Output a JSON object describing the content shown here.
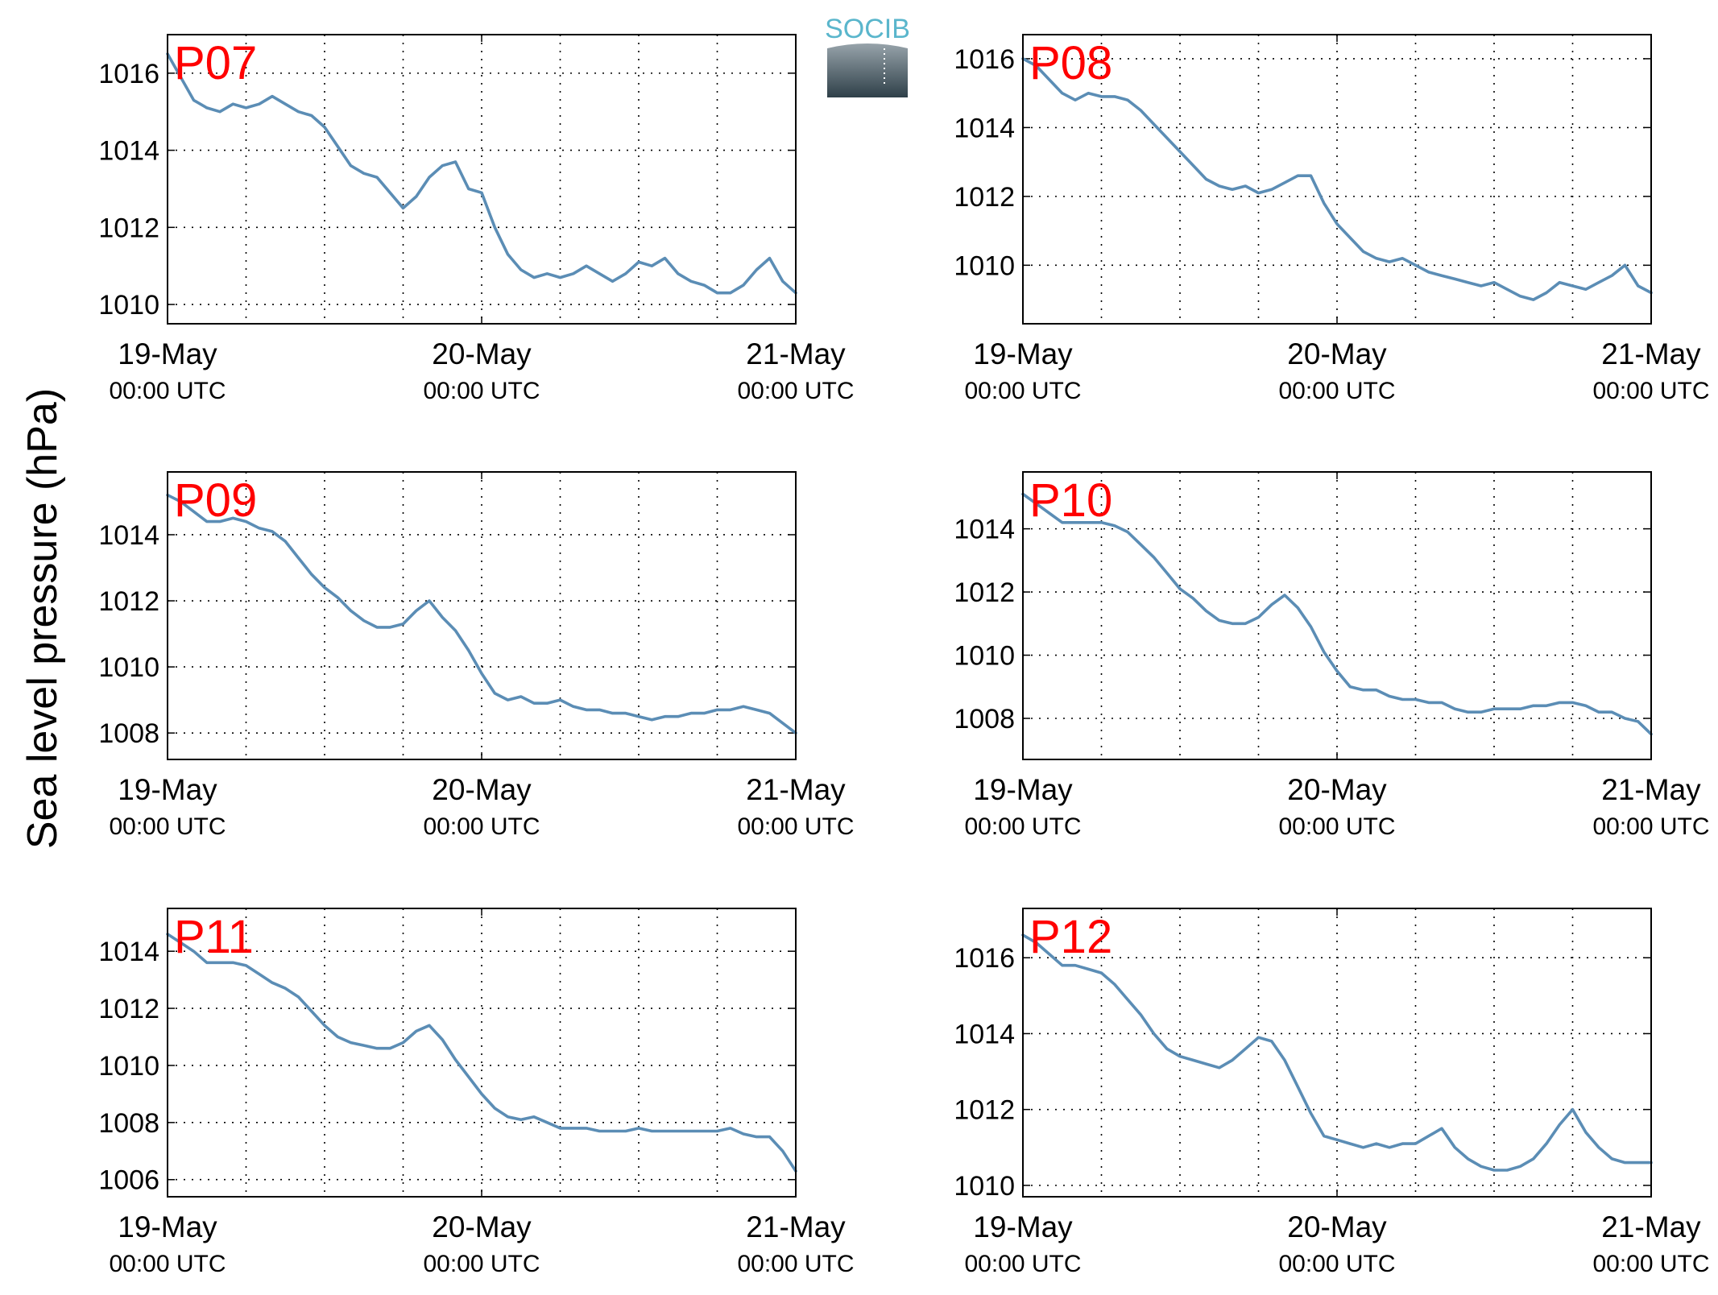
{
  "figure": {
    "ylabel": "Sea level pressure (hPa)",
    "logo_text": "SOCIB",
    "x_ticks": [
      {
        "day": 0,
        "date": "19-May",
        "time": "00:00 UTC"
      },
      {
        "day": 1,
        "date": "20-May",
        "time": "00:00 UTC"
      },
      {
        "day": 2,
        "date": "21-May",
        "time": "00:00 UTC"
      }
    ],
    "x_grid_hours": [
      0,
      6,
      12,
      18,
      24,
      30,
      36,
      42,
      48
    ],
    "series_color": "#5b8db5",
    "label_color": "#ff0000"
  },
  "chart_data": [
    {
      "type": "line",
      "title": "P07",
      "xlabel": "",
      "ylabel": "Sea level pressure (hPa)",
      "xlim": [
        0,
        48
      ],
      "ylim": [
        1009.5,
        1017
      ],
      "yticks": [
        1010,
        1012,
        1014,
        1016
      ],
      "grid": true,
      "x_unit": "hours since 19-May 00:00 UTC",
      "x": [
        0,
        1,
        2,
        3,
        4,
        5,
        6,
        7,
        8,
        9,
        10,
        11,
        12,
        13,
        14,
        15,
        16,
        17,
        18,
        19,
        20,
        21,
        22,
        23,
        24,
        25,
        26,
        27,
        28,
        29,
        30,
        31,
        32,
        33,
        34,
        35,
        36,
        37,
        38,
        39,
        40,
        41,
        42,
        43,
        44,
        45,
        46,
        47,
        48
      ],
      "values": [
        1016.5,
        1015.9,
        1015.3,
        1015.1,
        1015.0,
        1015.2,
        1015.1,
        1015.2,
        1015.4,
        1015.2,
        1015.0,
        1014.9,
        1014.6,
        1014.1,
        1013.6,
        1013.4,
        1013.3,
        1012.9,
        1012.5,
        1012.8,
        1013.3,
        1013.6,
        1013.7,
        1013.0,
        1012.9,
        1012.0,
        1011.3,
        1010.9,
        1010.7,
        1010.8,
        1010.7,
        1010.8,
        1011.0,
        1010.8,
        1010.6,
        1010.8,
        1011.1,
        1011.0,
        1011.2,
        1010.8,
        1010.6,
        1010.5,
        1010.3,
        1010.3,
        1010.5,
        1010.9,
        1011.2,
        1010.6,
        1010.3
      ]
    },
    {
      "type": "line",
      "title": "P08",
      "xlabel": "",
      "ylabel": "Sea level pressure (hPa)",
      "xlim": [
        0,
        48
      ],
      "ylim": [
        1008.3,
        1016.7
      ],
      "yticks": [
        1010,
        1012,
        1014,
        1016
      ],
      "grid": true,
      "x_unit": "hours since 19-May 00:00 UTC",
      "x": [
        0,
        1,
        2,
        3,
        4,
        5,
        6,
        7,
        8,
        9,
        10,
        11,
        12,
        13,
        14,
        15,
        16,
        17,
        18,
        19,
        20,
        21,
        22,
        23,
        24,
        25,
        26,
        27,
        28,
        29,
        30,
        31,
        32,
        33,
        34,
        35,
        36,
        37,
        38,
        39,
        40,
        41,
        42,
        43,
        44,
        45,
        46,
        47,
        48
      ],
      "values": [
        1016.0,
        1015.8,
        1015.4,
        1015.0,
        1014.8,
        1015.0,
        1014.9,
        1014.9,
        1014.8,
        1014.5,
        1014.1,
        1013.7,
        1013.3,
        1012.9,
        1012.5,
        1012.3,
        1012.2,
        1012.3,
        1012.1,
        1012.2,
        1012.4,
        1012.6,
        1012.6,
        1011.8,
        1011.2,
        1010.8,
        1010.4,
        1010.2,
        1010.1,
        1010.2,
        1010.0,
        1009.8,
        1009.7,
        1009.6,
        1009.5,
        1009.4,
        1009.5,
        1009.3,
        1009.1,
        1009.0,
        1009.2,
        1009.5,
        1009.4,
        1009.3,
        1009.5,
        1009.7,
        1010.0,
        1009.4,
        1009.2
      ]
    },
    {
      "type": "line",
      "title": "P09",
      "xlabel": "",
      "ylabel": "Sea level pressure (hPa)",
      "xlim": [
        0,
        48
      ],
      "ylim": [
        1007.2,
        1015.9
      ],
      "yticks": [
        1008,
        1010,
        1012,
        1014
      ],
      "grid": true,
      "x_unit": "hours since 19-May 00:00 UTC",
      "x": [
        0,
        1,
        2,
        3,
        4,
        5,
        6,
        7,
        8,
        9,
        10,
        11,
        12,
        13,
        14,
        15,
        16,
        17,
        18,
        19,
        20,
        21,
        22,
        23,
        24,
        25,
        26,
        27,
        28,
        29,
        30,
        31,
        32,
        33,
        34,
        35,
        36,
        37,
        38,
        39,
        40,
        41,
        42,
        43,
        44,
        45,
        46,
        47,
        48
      ],
      "values": [
        1015.2,
        1015.0,
        1014.7,
        1014.4,
        1014.4,
        1014.5,
        1014.4,
        1014.2,
        1014.1,
        1013.8,
        1013.3,
        1012.8,
        1012.4,
        1012.1,
        1011.7,
        1011.4,
        1011.2,
        1011.2,
        1011.3,
        1011.7,
        1012.0,
        1011.5,
        1011.1,
        1010.5,
        1009.8,
        1009.2,
        1009.0,
        1009.1,
        1008.9,
        1008.9,
        1009.0,
        1008.8,
        1008.7,
        1008.7,
        1008.6,
        1008.6,
        1008.5,
        1008.4,
        1008.5,
        1008.5,
        1008.6,
        1008.6,
        1008.7,
        1008.7,
        1008.8,
        1008.7,
        1008.6,
        1008.3,
        1008.0
      ]
    },
    {
      "type": "line",
      "title": "P10",
      "xlabel": "",
      "ylabel": "Sea level pressure (hPa)",
      "xlim": [
        0,
        48
      ],
      "ylim": [
        1006.7,
        1015.8
      ],
      "yticks": [
        1008,
        1010,
        1012,
        1014
      ],
      "grid": true,
      "x_unit": "hours since 19-May 00:00 UTC",
      "x": [
        0,
        1,
        2,
        3,
        4,
        5,
        6,
        7,
        8,
        9,
        10,
        11,
        12,
        13,
        14,
        15,
        16,
        17,
        18,
        19,
        20,
        21,
        22,
        23,
        24,
        25,
        26,
        27,
        28,
        29,
        30,
        31,
        32,
        33,
        34,
        35,
        36,
        37,
        38,
        39,
        40,
        41,
        42,
        43,
        44,
        45,
        46,
        47,
        48
      ],
      "values": [
        1015.1,
        1014.8,
        1014.5,
        1014.2,
        1014.2,
        1014.2,
        1014.2,
        1014.1,
        1013.9,
        1013.5,
        1013.1,
        1012.6,
        1012.1,
        1011.8,
        1011.4,
        1011.1,
        1011.0,
        1011.0,
        1011.2,
        1011.6,
        1011.9,
        1011.5,
        1010.9,
        1010.1,
        1009.5,
        1009.0,
        1008.9,
        1008.9,
        1008.7,
        1008.6,
        1008.6,
        1008.5,
        1008.5,
        1008.3,
        1008.2,
        1008.2,
        1008.3,
        1008.3,
        1008.3,
        1008.4,
        1008.4,
        1008.5,
        1008.5,
        1008.4,
        1008.2,
        1008.2,
        1008.0,
        1007.9,
        1007.5
      ]
    },
    {
      "type": "line",
      "title": "P11",
      "xlabel": "",
      "ylabel": "Sea level pressure (hPa)",
      "xlim": [
        0,
        48
      ],
      "ylim": [
        1005.4,
        1015.5
      ],
      "yticks": [
        1006,
        1008,
        1010,
        1012,
        1014
      ],
      "grid": true,
      "x_unit": "hours since 19-May 00:00 UTC",
      "x": [
        0,
        1,
        2,
        3,
        4,
        5,
        6,
        7,
        8,
        9,
        10,
        11,
        12,
        13,
        14,
        15,
        16,
        17,
        18,
        19,
        20,
        21,
        22,
        23,
        24,
        25,
        26,
        27,
        28,
        29,
        30,
        31,
        32,
        33,
        34,
        35,
        36,
        37,
        38,
        39,
        40,
        41,
        42,
        43,
        44,
        45,
        46,
        47,
        48
      ],
      "values": [
        1014.6,
        1014.3,
        1014.0,
        1013.6,
        1013.6,
        1013.6,
        1013.5,
        1013.2,
        1012.9,
        1012.7,
        1012.4,
        1011.9,
        1011.4,
        1011.0,
        1010.8,
        1010.7,
        1010.6,
        1010.6,
        1010.8,
        1011.2,
        1011.4,
        1010.9,
        1010.2,
        1009.6,
        1009.0,
        1008.5,
        1008.2,
        1008.1,
        1008.2,
        1008.0,
        1007.8,
        1007.8,
        1007.8,
        1007.7,
        1007.7,
        1007.7,
        1007.8,
        1007.7,
        1007.7,
        1007.7,
        1007.7,
        1007.7,
        1007.7,
        1007.8,
        1007.6,
        1007.5,
        1007.5,
        1007.0,
        1006.3
      ]
    },
    {
      "type": "line",
      "title": "P12",
      "xlabel": "",
      "ylabel": "Sea level pressure (hPa)",
      "xlim": [
        0,
        48
      ],
      "ylim": [
        1009.7,
        1017.3
      ],
      "yticks": [
        1010,
        1012,
        1014,
        1016
      ],
      "grid": true,
      "x_unit": "hours since 19-May 00:00 UTC",
      "x": [
        0,
        1,
        2,
        3,
        4,
        5,
        6,
        7,
        8,
        9,
        10,
        11,
        12,
        13,
        14,
        15,
        16,
        17,
        18,
        19,
        20,
        21,
        22,
        23,
        24,
        25,
        26,
        27,
        28,
        29,
        30,
        31,
        32,
        33,
        34,
        35,
        36,
        37,
        38,
        39,
        40,
        41,
        42,
        43,
        44,
        45,
        46,
        47,
        48
      ],
      "values": [
        1016.6,
        1016.4,
        1016.1,
        1015.8,
        1015.8,
        1015.7,
        1015.6,
        1015.3,
        1014.9,
        1014.5,
        1014.0,
        1013.6,
        1013.4,
        1013.3,
        1013.2,
        1013.1,
        1013.3,
        1013.6,
        1013.9,
        1013.8,
        1013.3,
        1012.6,
        1011.9,
        1011.3,
        1011.2,
        1011.1,
        1011.0,
        1011.1,
        1011.0,
        1011.1,
        1011.1,
        1011.3,
        1011.5,
        1011.0,
        1010.7,
        1010.5,
        1010.4,
        1010.4,
        1010.5,
        1010.7,
        1011.1,
        1011.6,
        1012.0,
        1011.4,
        1011.0,
        1010.7,
        1010.6,
        1010.6,
        1010.6
      ]
    }
  ]
}
